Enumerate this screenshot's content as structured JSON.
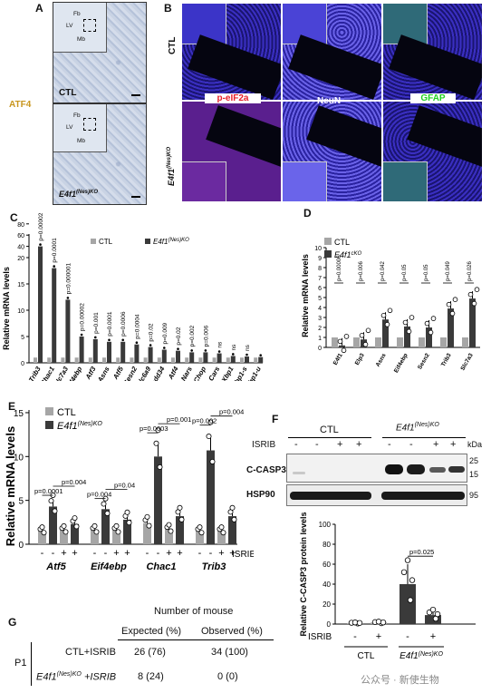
{
  "panelA": {
    "letter": "A",
    "marker": "ATF4",
    "ctl": "CTL",
    "ko_main": "E4f1",
    "ko_sup": "(Nes)KO",
    "regions": [
      "Fb",
      "LV",
      "Mb"
    ]
  },
  "panelB": {
    "letter": "B",
    "row1": "CTL",
    "row2_main": "E4f1",
    "row2_sup": "(Nes)KO",
    "stains": [
      "p-eIF2a",
      "NeuN",
      "GFAP"
    ],
    "stain_colors": [
      "#e8202a",
      "#ffffff",
      "#22d022"
    ]
  },
  "panelC": {
    "letter": "C",
    "legend_ctl": "CTL",
    "legend_ko_main": "E4f1",
    "legend_ko_sup": "(Nes)KO",
    "chart_data": {
      "type": "bar",
      "ylabel": "Relative mRNA levels",
      "yticks": [
        "0",
        "5",
        "10",
        "15",
        "20",
        "40",
        "60",
        "80"
      ],
      "categories": [
        "Trib3",
        "Chac1",
        "Slc7a3",
        "Eif4ebp",
        "Atf3",
        "Asns",
        "Atf5",
        "Sesn2",
        "Slc6a9",
        "Gadd34",
        "Atf4",
        "Nars",
        "Chop",
        "Cars",
        "Xbp1",
        "Xbp1-s",
        "Xbp1-u"
      ],
      "series": [
        {
          "name": "CTL",
          "values": [
            1,
            1,
            1,
            1,
            1,
            1,
            1,
            1,
            1,
            1,
            1,
            1,
            1,
            1,
            1,
            1,
            1
          ]
        },
        {
          "name": "E4f1(Nes)KO",
          "values": [
            40,
            18,
            12,
            5,
            4.5,
            4,
            4,
            3.5,
            3,
            2.5,
            2.3,
            2,
            2,
            1.8,
            1.3,
            1.2,
            1.1
          ]
        }
      ],
      "pvalues": [
        "p=0.00002",
        "p=0.0001",
        "p=0.000001",
        "p=0.00002",
        "p=0.001",
        "p=0.0001",
        "p=0.0006",
        "p=0.0004",
        "p=0.02",
        "p=0.009",
        "p=0.02",
        "p=0.002",
        "p=0.006",
        "ns",
        "ns",
        "ns"
      ]
    }
  },
  "panelD": {
    "letter": "D",
    "legend_ctl": "CTL",
    "legend_ko_main": "E4f1",
    "legend_ko_sup": "cKO",
    "chart_data": {
      "type": "bar",
      "ylabel": "Relative mRNA levels",
      "yticks": [
        "0",
        "1",
        "2",
        "3",
        "4",
        "5",
        "6",
        "7",
        "8",
        "9",
        "10"
      ],
      "ylim": [
        0,
        10
      ],
      "categories": [
        "E4f1",
        "Elp3",
        "Asns",
        "Eif4ebp",
        "Sesn2",
        "Trib3",
        "Slc7a3"
      ],
      "series": [
        {
          "name": "CTL",
          "values": [
            1,
            1,
            1,
            1,
            1,
            1,
            1
          ]
        },
        {
          "name": "E4f1cKO",
          "values": [
            0.2,
            0.8,
            2.8,
            2.1,
            2,
            3.9,
            4.9
          ]
        }
      ],
      "pvalues": [
        "p=0.00006",
        "p=0.006",
        "p=0.042",
        "p=0.05",
        "p=0.05",
        "p=0.049",
        "p=0.026"
      ]
    }
  },
  "panelE": {
    "letter": "E",
    "legend_ctl": "CTL",
    "legend_ko_main": "E4f1",
    "legend_ko_sup": "(Nes)KO",
    "isrib": "ISRIB",
    "signs": [
      "-",
      "-",
      "+",
      "+"
    ],
    "chart_data": {
      "type": "bar",
      "ylabel": "Relative mRNA levels",
      "yticks": [
        "0",
        "5",
        "10",
        "15"
      ],
      "ylim": [
        0,
        15
      ],
      "categories": [
        "Atf5",
        "Eif4ebp",
        "Chac1",
        "Trib3"
      ],
      "series": [
        {
          "name": "CTL -ISRIB",
          "values": [
            1.5,
            1.6,
            2.4,
            1.5
          ]
        },
        {
          "name": "KO -ISRIB",
          "values": [
            4.3,
            4,
            10,
            10.7
          ]
        },
        {
          "name": "CTL +ISRIB",
          "values": [
            1.6,
            1.6,
            1.7,
            1.5
          ]
        },
        {
          "name": "KO +ISRIB",
          "values": [
            2.3,
            2.8,
            3.2,
            3.2
          ]
        }
      ],
      "p_upper": [
        "p=0.004",
        "p=0.04",
        "p=0.001",
        "p=0.004"
      ],
      "p_lower": [
        "p=0.0001",
        "p=0.004",
        "p=0.0003",
        "p=0.002"
      ]
    }
  },
  "panelF": {
    "letter": "F",
    "ctl": "CTL",
    "ko_main": "E4f1",
    "ko_sup": "(Nes)KO",
    "isrib": "ISRIB",
    "kda": "kDa",
    "signs": [
      "-",
      "-",
      "+",
      "+",
      "-",
      "-",
      "+",
      "+"
    ],
    "bands": [
      "C-CASP3",
      "HSP90"
    ],
    "mw": [
      "25",
      "15",
      "95"
    ],
    "chart_data": {
      "type": "bar",
      "ylabel": "Relative C-CASP3 protein levels",
      "yticks": [
        "0",
        "20",
        "40",
        "60",
        "80",
        "100"
      ],
      "ylim": [
        0,
        100
      ],
      "categories": [
        "CTL -",
        "CTL +",
        "E4f1(Nes)KO -",
        "E4f1(Nes)KO +"
      ],
      "values": [
        1,
        1.5,
        40,
        9
      ],
      "pvalue": "p=0.025",
      "group_ctl": "CTL",
      "group_ko_main": "E4f1",
      "group_ko_sup": "(Nes)KO",
      "signs": [
        "-",
        "+",
        "-",
        "+"
      ]
    }
  },
  "panelG": {
    "letter": "G",
    "header": "Number of mouse",
    "col1": "Expected (%)",
    "col2": "Observed (%)",
    "row_label": "P1",
    "rows": [
      {
        "label": "CTL+ISRIB",
        "expected": "26 (76)",
        "observed": "34 (100)"
      },
      {
        "label_main": "E4f1",
        "label_sup": "(Nes)KO",
        "label_tail": "+ISRIB",
        "expected": "8 (24)",
        "observed": "0 (0)"
      }
    ]
  },
  "watermark": "公众号 · 新使生物"
}
